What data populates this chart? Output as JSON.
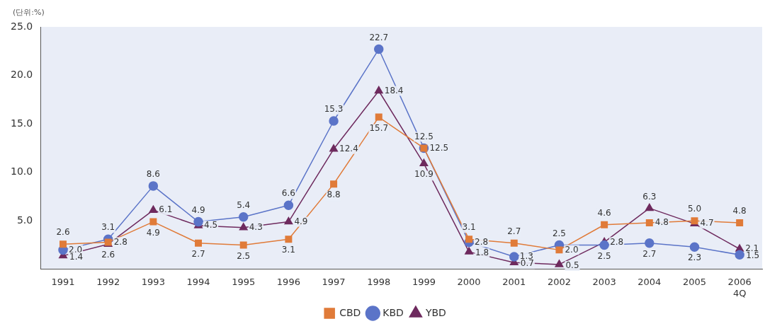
{
  "chart_data": {
    "type": "line",
    "annotations": [
      "(단위:%)"
    ],
    "categories": [
      "1991",
      "1992",
      "1993",
      "1994",
      "1995",
      "1996",
      "1997",
      "1998",
      "1999",
      "2000",
      "2001",
      "2002",
      "2003",
      "2004",
      "2005",
      "2006\n4Q"
    ],
    "series": [
      {
        "name": "CBD",
        "color": "#e07b39",
        "marker": "square",
        "values": [
          2.6,
          2.8,
          4.9,
          2.7,
          2.5,
          3.1,
          8.8,
          15.7,
          12.5,
          3.1,
          2.7,
          2.0,
          4.6,
          4.8,
          5.0,
          4.8
        ],
        "value_labels": [
          "2.6",
          "2.8",
          "4.9",
          "2.7",
          "2.5",
          "3.1",
          "8.8",
          "15.7",
          "12.5",
          "3.1",
          "2.7",
          "2.0",
          "4.6",
          "4.8",
          "5.0",
          "4.8"
        ]
      },
      {
        "name": "KBD",
        "color": "#5b74c8",
        "marker": "circle",
        "values": [
          2.0,
          3.1,
          8.6,
          4.9,
          5.4,
          6.6,
          15.3,
          22.7,
          12.5,
          2.8,
          1.3,
          2.5,
          2.5,
          2.7,
          2.3,
          1.5
        ],
        "value_labels": [
          "2.0",
          "3.1",
          "8.6",
          "4.9",
          "5.4",
          "6.6",
          "15.3",
          "22.7",
          "12.5",
          "2.8",
          "1.3",
          "2.5",
          "2.5",
          "2.7",
          "2.3",
          "1.5"
        ]
      },
      {
        "name": "YBD",
        "color": "#6e2a5e",
        "marker": "triangle",
        "values": [
          1.4,
          2.6,
          6.1,
          4.5,
          4.3,
          4.9,
          12.4,
          18.4,
          10.9,
          1.8,
          0.7,
          0.5,
          2.8,
          6.3,
          4.7,
          2.1
        ],
        "value_labels": [
          "1.4",
          "2.6",
          "6.1",
          "4.5",
          "4.3",
          "4.9",
          "12.4",
          "18.4",
          "10.9",
          "1.8",
          "0.7",
          "0.5",
          "2.8",
          "6.3",
          "4.7",
          "2.1"
        ]
      }
    ],
    "ylim": [
      0,
      25
    ],
    "yticks": [
      {
        "value": 5,
        "label": "5.0"
      },
      {
        "value": 10,
        "label": "10.0"
      },
      {
        "value": 15,
        "label": "15.0"
      },
      {
        "value": 20,
        "label": "20.0"
      },
      {
        "value": 25,
        "label": "25.0"
      }
    ],
    "grid": false,
    "legend": "bottom"
  }
}
